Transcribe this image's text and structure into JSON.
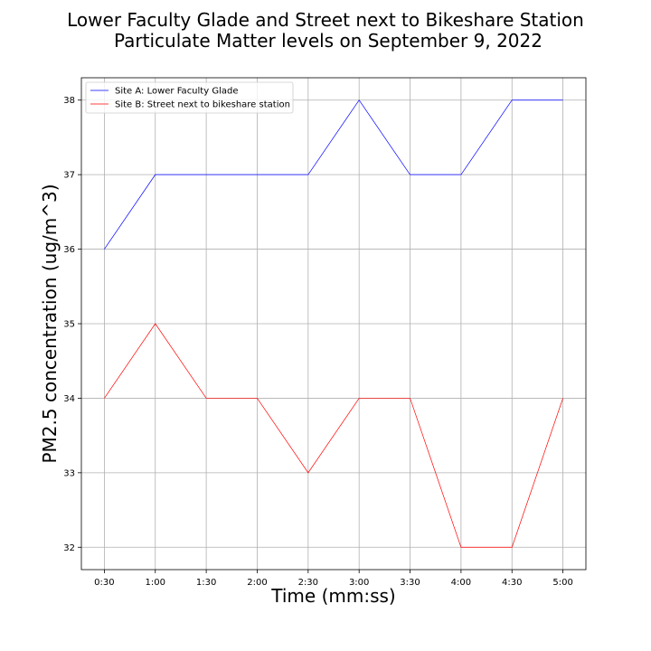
{
  "chart_data": {
    "type": "line",
    "title": "Lower Faculty Glade and Street next to Bikeshare Station\nParticulate Matter levels on September 9, 2022",
    "title_lines": [
      "Lower Faculty Glade and Street next to Bikeshare Station",
      "Particulate Matter levels on September 9, 2022"
    ],
    "xlabel": "Time (mm:ss)",
    "ylabel": "PM2.5 concentration (ug/m^3)",
    "categories": [
      "0:30",
      "1:00",
      "1:30",
      "2:00",
      "2:30",
      "3:00",
      "3:30",
      "4:00",
      "4:30",
      "5:00"
    ],
    "series": [
      {
        "name": "Site A: Lower Faculty Glade",
        "color": "#0000ff",
        "values": [
          36,
          37,
          37,
          37,
          37,
          38,
          37,
          37,
          38,
          38
        ]
      },
      {
        "name": "Site B: Street next to bikeshare station",
        "color": "#ff0000",
        "values": [
          34,
          35,
          34,
          34,
          33,
          34,
          34,
          32,
          32,
          34
        ]
      }
    ],
    "ylim": [
      31.7,
      38.3
    ],
    "yticks": [
      32,
      33,
      34,
      35,
      36,
      37,
      38
    ],
    "grid": true,
    "legend_position": "top-left"
  }
}
